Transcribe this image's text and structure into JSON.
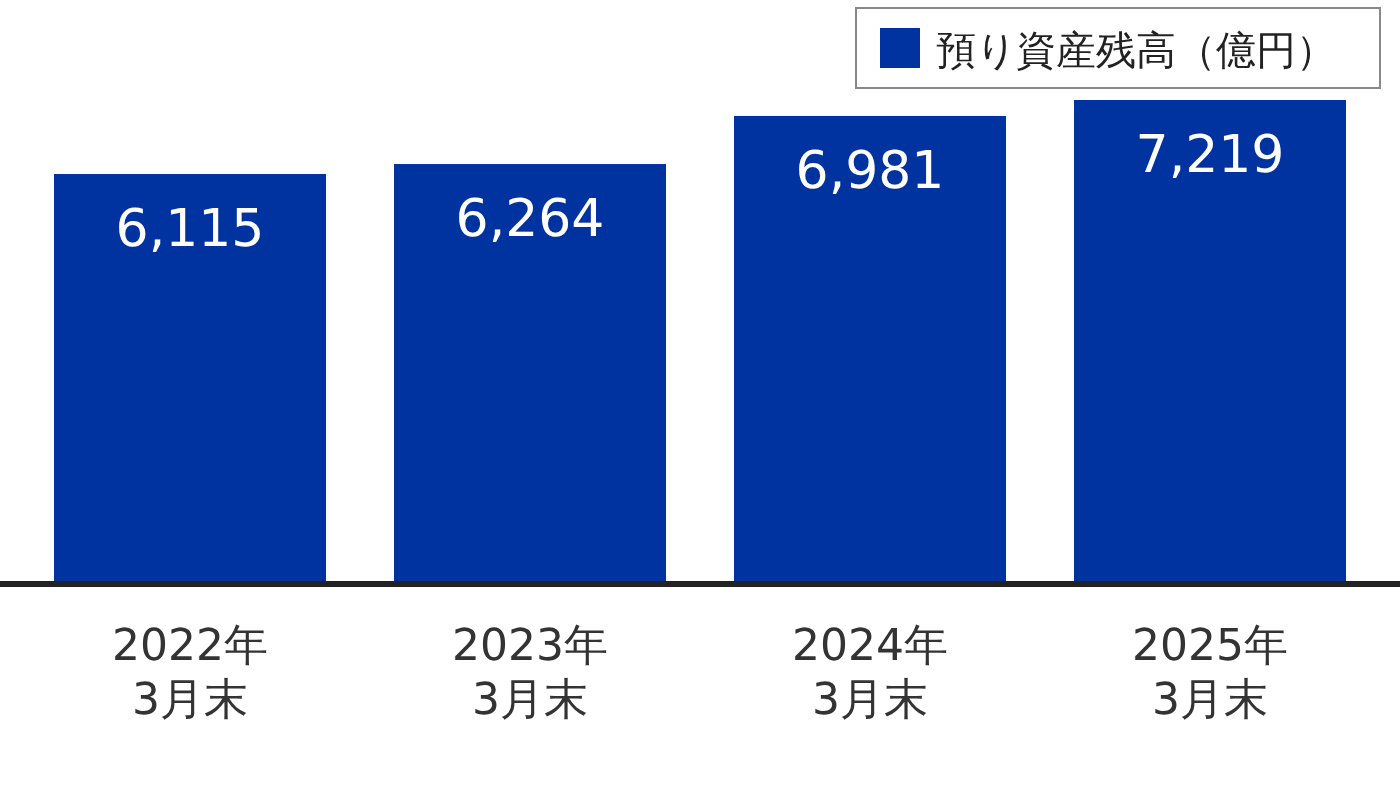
{
  "chart_data": {
    "type": "bar",
    "categories": [
      "2022年\n3月末",
      "2023年\n3月末",
      "2024年\n3月末",
      "2025年\n3月末"
    ],
    "series": [
      {
        "name": "預り資産残高（億円）",
        "color": "#0033a0",
        "values": [
          6115,
          6264,
          6981,
          7219
        ],
        "value_labels": [
          "6,115",
          "6,264",
          "6,981",
          "7,219"
        ]
      }
    ],
    "tick_labels": "x",
    "legend": "top right",
    "grid": false
  }
}
